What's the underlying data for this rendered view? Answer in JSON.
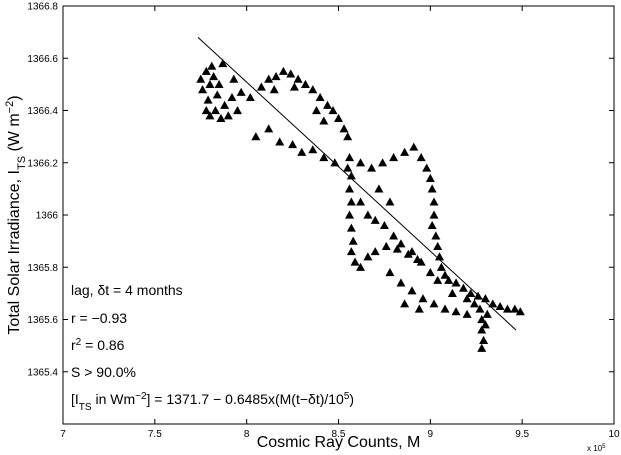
{
  "chart_data": {
    "type": "scatter",
    "xlabel": [
      "Cosmic Ray Counts, M"
    ],
    "x_multiplier": [
      {
        "text": "x 10"
      },
      {
        "text": "5",
        "sup": true
      }
    ],
    "ylabel": [
      {
        "text": "Total Solar Irradiance, I"
      },
      {
        "text": "TS",
        "sub": true
      },
      {
        "text": " (W m"
      },
      {
        "text": "−2",
        "sup": true
      },
      {
        "text": ")"
      }
    ],
    "xlim": [
      7,
      10
    ],
    "xticks": [
      7,
      7.5,
      8,
      8.5,
      9,
      9.5,
      10
    ],
    "ylim": [
      1365.2,
      1366.8
    ],
    "yticks": [
      1365.4,
      1365.6,
      1365.8,
      1366,
      1366.2,
      1366.4,
      1366.6,
      1366.8
    ],
    "annotations": [
      [
        {
          "text": "lag, δt = 4 months"
        }
      ],
      [
        {
          "text": "r = −0.93"
        }
      ],
      [
        {
          "text": "r"
        },
        {
          "text": "2",
          "sup": true
        },
        {
          "text": " = 0.86"
        }
      ],
      [
        {
          "text": "S > 90.0%"
        }
      ],
      [
        {
          "text": "[I"
        },
        {
          "text": "TS",
          "sub": true
        },
        {
          "text": " in Wm"
        },
        {
          "text": "−2",
          "sup": true
        },
        {
          "text": "] = 1371.7 − 0.6485x(M(t−δt)/10"
        },
        {
          "text": "5",
          "sup": true
        },
        {
          "text": ")"
        }
      ]
    ],
    "series": [
      {
        "color": "#000000",
        "marker": "triangle",
        "x": [
          7.75,
          7.78,
          7.8,
          7.76,
          7.82,
          7.85,
          7.79,
          7.83,
          7.88,
          7.92,
          7.86,
          7.8,
          7.9,
          7.95,
          7.97,
          7.87,
          7.81,
          7.84,
          7.93,
          7.78,
          8.02,
          8.08,
          8.12,
          8.16,
          8.2,
          8.24,
          8.28,
          8.32,
          8.36,
          8.4,
          8.44,
          8.47,
          8.5,
          8.53,
          8.55,
          8.15,
          8.26,
          8.38,
          8.42,
          8.05,
          8.12,
          8.18,
          8.25,
          8.3,
          8.36,
          8.42,
          8.48,
          8.55,
          8.62,
          8.68,
          8.74,
          8.8,
          8.86,
          8.91,
          8.95,
          8.98,
          9.0,
          9.01,
          9.02,
          9.02,
          9.01,
          9.03,
          9.04,
          9.05,
          9.06,
          9.08,
          8.56,
          8.57,
          8.56,
          8.57,
          8.56,
          8.57,
          8.58,
          8.57,
          8.59,
          8.62,
          8.66,
          8.7,
          8.76,
          8.82,
          8.88,
          8.93,
          8.62,
          8.66,
          8.7,
          8.75,
          8.8,
          8.84,
          8.9,
          8.95,
          9.0,
          9.04,
          8.72,
          8.78,
          8.78,
          8.84,
          8.9,
          8.96,
          9.02,
          9.08,
          9.14,
          9.2,
          8.86,
          8.94,
          9.1,
          9.14,
          9.18,
          9.22,
          9.26,
          9.3,
          9.34,
          9.38,
          9.42,
          9.46,
          9.49,
          9.12,
          9.2,
          9.24,
          9.27,
          9.28,
          9.28,
          9.29,
          9.28,
          9.3,
          9.31
        ],
        "values": [
          1366.52,
          1366.55,
          1366.5,
          1366.48,
          1366.53,
          1366.5,
          1366.44,
          1366.4,
          1366.42,
          1366.45,
          1366.37,
          1366.38,
          1366.38,
          1366.4,
          1366.47,
          1366.58,
          1366.57,
          1366.46,
          1366.52,
          1366.4,
          1366.45,
          1366.49,
          1366.52,
          1366.53,
          1366.55,
          1366.54,
          1366.52,
          1366.5,
          1366.48,
          1366.45,
          1366.42,
          1366.4,
          1366.37,
          1366.33,
          1366.3,
          1366.48,
          1366.49,
          1366.4,
          1366.36,
          1366.3,
          1366.33,
          1366.28,
          1366.27,
          1366.24,
          1366.25,
          1366.22,
          1366.2,
          1366.18,
          1366.2,
          1366.18,
          1366.2,
          1366.22,
          1366.24,
          1366.26,
          1366.22,
          1366.18,
          1366.14,
          1366.1,
          1366.05,
          1366.0,
          1365.96,
          1365.92,
          1365.88,
          1365.84,
          1365.8,
          1365.77,
          1366.22,
          1366.15,
          1366.1,
          1366.05,
          1366.0,
          1365.95,
          1365.9,
          1365.86,
          1365.82,
          1365.8,
          1365.84,
          1365.86,
          1365.88,
          1365.87,
          1365.85,
          1365.83,
          1366.05,
          1366.0,
          1365.98,
          1365.96,
          1365.92,
          1365.89,
          1365.86,
          1365.82,
          1365.78,
          1365.75,
          1366.1,
          1366.05,
          1365.78,
          1365.74,
          1365.71,
          1365.68,
          1365.66,
          1365.64,
          1365.63,
          1365.62,
          1365.66,
          1365.64,
          1365.75,
          1365.74,
          1365.72,
          1365.7,
          1365.69,
          1365.68,
          1365.66,
          1365.65,
          1365.64,
          1365.64,
          1365.63,
          1365.7,
          1365.68,
          1365.66,
          1365.64,
          1365.6,
          1365.56,
          1365.52,
          1365.49,
          1365.58,
          1365.62
        ]
      }
    ],
    "fit": {
      "color": "#000000",
      "x": [
        7.735,
        9.466
      ],
      "values": [
        1366.68,
        1365.56
      ]
    }
  }
}
